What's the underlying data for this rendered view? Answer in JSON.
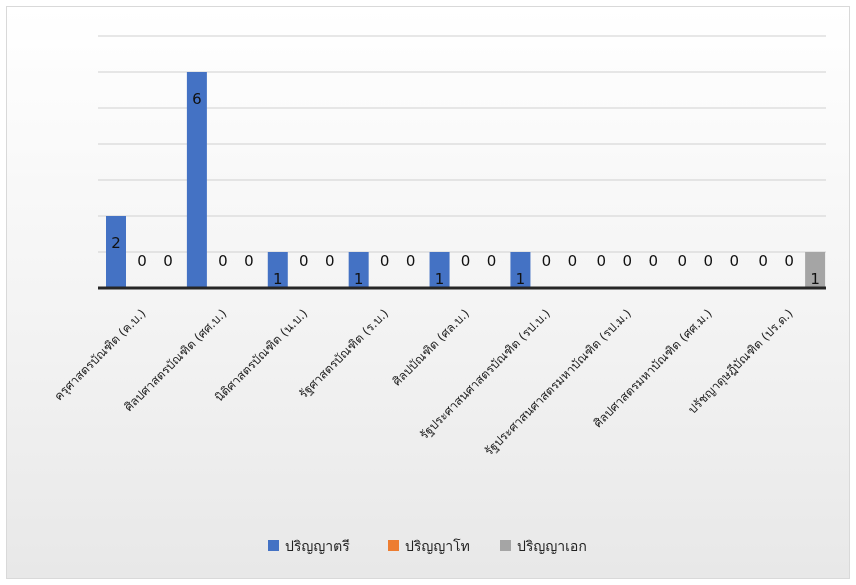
{
  "chart_data": {
    "type": "bar",
    "title": "",
    "xlabel": "",
    "ylabel": "",
    "ylim": [
      0,
      7
    ],
    "grid": true,
    "legend_position": "bottom",
    "categories": [
      "ครุศาสตรบัณฑิต (ค.บ.)",
      "ศิลปศาสตรบัณฑิต (ศศ.บ.)",
      "นิติศาสตรบัณฑิต (น.บ.)",
      "รัฐศาสตรบัณฑิต (ร.บ.)",
      "ศิลปบัณฑิต (ศล.บ.)",
      "รัฐประศาสนศาสตรบัณฑิต (รป.บ.)",
      "รัฐประศาสนศาสตรมหาบัณฑิต (รป.ม.)",
      "ศิลปศาสตรมหาบัณฑิต (ศศ.ม.)",
      "ปรัชญาดุษฎีบัณฑิต (ปร.ด.)"
    ],
    "series": [
      {
        "name": "ปริญญาตรี",
        "color": "#4472c4",
        "values": [
          2,
          6,
          1,
          1,
          1,
          1,
          0,
          0,
          0
        ]
      },
      {
        "name": "ปริญญาโท",
        "color": "#ed7d31",
        "values": [
          0,
          0,
          0,
          0,
          0,
          0,
          0,
          0,
          0
        ]
      },
      {
        "name": "ปริญญาเอก",
        "color": "#a5a5a5",
        "values": [
          0,
          0,
          0,
          0,
          0,
          0,
          0,
          0,
          1
        ]
      }
    ]
  }
}
